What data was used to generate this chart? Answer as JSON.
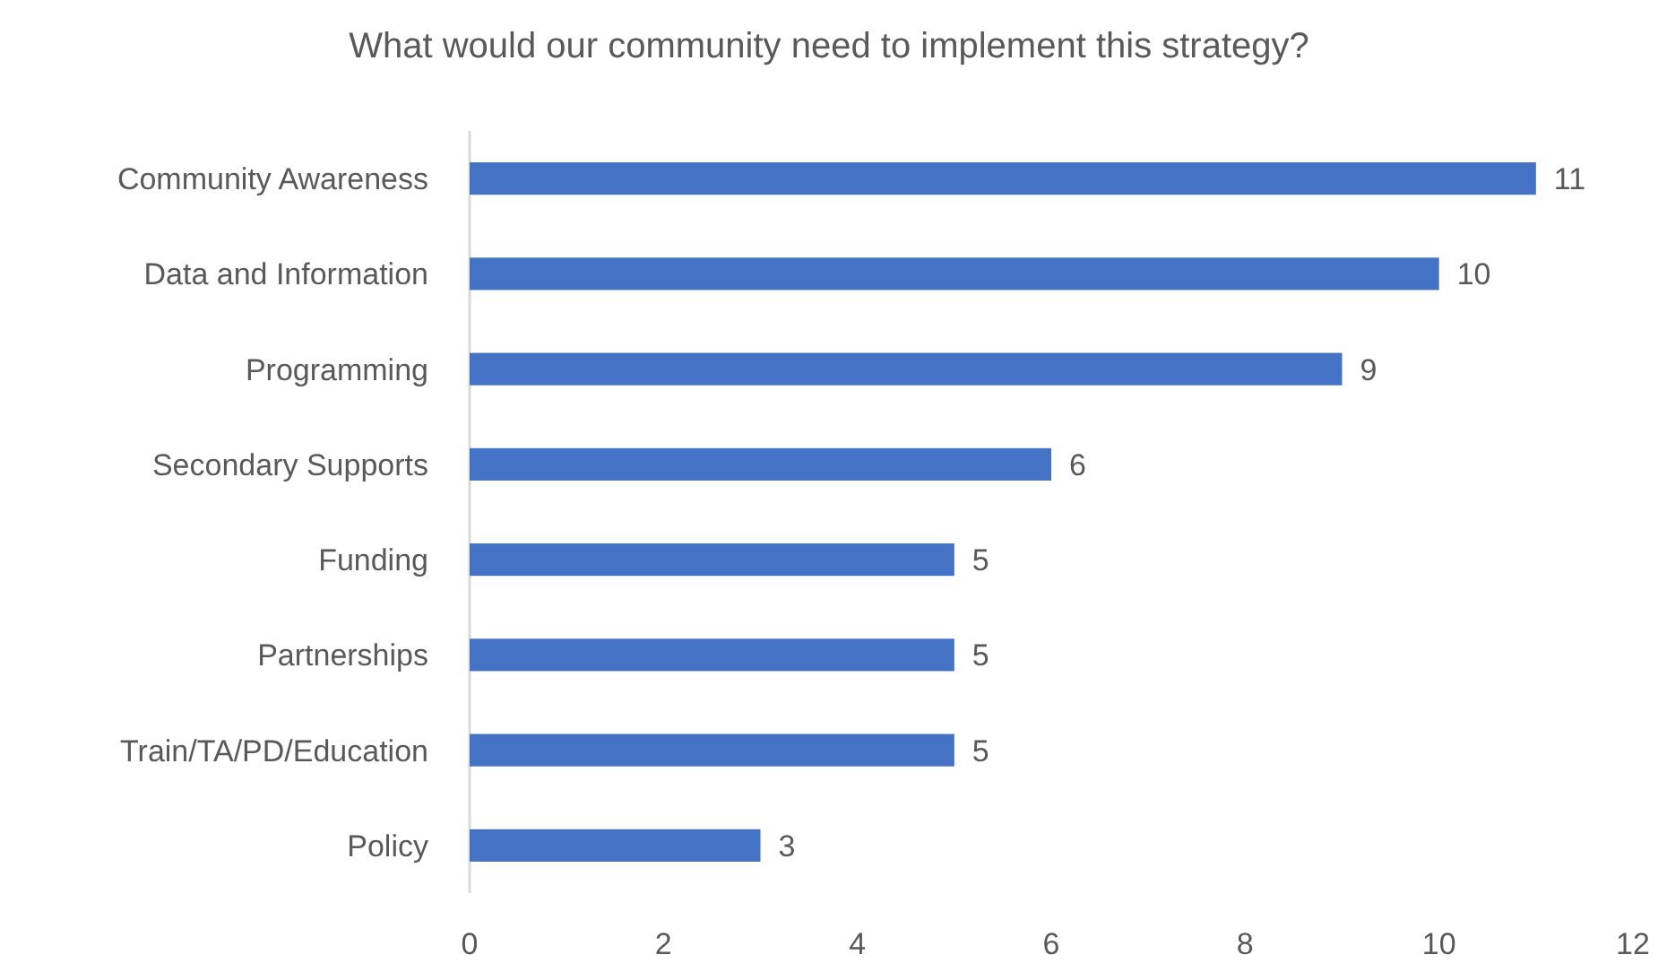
{
  "chart_data": {
    "type": "bar",
    "orientation": "horizontal",
    "title": "What would our community need to implement this strategy?",
    "categories": [
      "Community Awareness",
      "Data and Information",
      "Programming",
      "Secondary Supports",
      "Funding",
      "Partnerships",
      "Train/TA/PD/Education",
      "Policy"
    ],
    "values": [
      11,
      10,
      9,
      6,
      5,
      5,
      5,
      3
    ],
    "color": "#4472c4",
    "xlim": [
      0,
      12
    ],
    "xticks": [
      0,
      2,
      4,
      6,
      8,
      10,
      12
    ],
    "data_labels": true
  }
}
